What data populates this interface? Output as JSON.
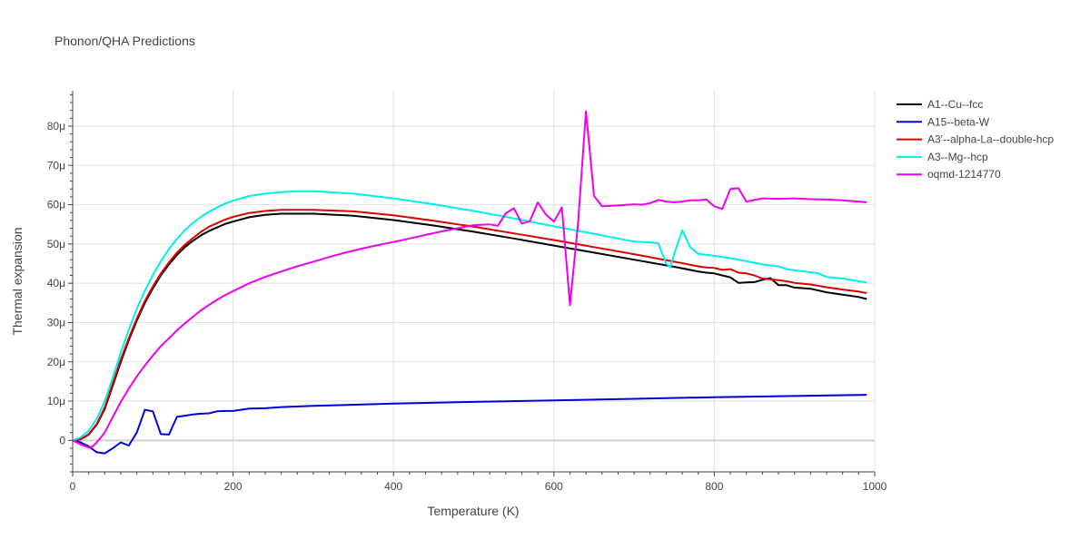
{
  "chart_data": {
    "type": "line",
    "title": "Phonon/QHA Predictions",
    "xlabel": "Temperature (K)",
    "ylabel": "Thermal expansion",
    "xlim": [
      0,
      1000
    ],
    "ylim": [
      -8,
      89
    ],
    "y_unit_suffix": "μ",
    "x_ticks": [
      0,
      200,
      400,
      600,
      800,
      1000
    ],
    "y_ticks": [
      0,
      10,
      20,
      30,
      40,
      50,
      60,
      70,
      80
    ],
    "grid": true,
    "legend_position": "right",
    "series": [
      {
        "name": "A1--Cu--fcc",
        "color": "#000000",
        "x": [
          0,
          10,
          20,
          30,
          40,
          50,
          60,
          70,
          80,
          90,
          100,
          110,
          120,
          130,
          140,
          150,
          160,
          170,
          180,
          190,
          200,
          220,
          240,
          260,
          280,
          300,
          350,
          400,
          450,
          500,
          550,
          600,
          650,
          700,
          750,
          780,
          790,
          800,
          810,
          820,
          830,
          840,
          850,
          860,
          870,
          880,
          890,
          900,
          920,
          940,
          960,
          980,
          990
        ],
        "y": [
          0,
          0.3,
          1.5,
          4,
          8,
          14,
          20,
          25.5,
          30.5,
          35,
          38.7,
          42,
          44.8,
          47.2,
          49.2,
          50.8,
          52.2,
          53.3,
          54.2,
          55.1,
          55.7,
          56.8,
          57.4,
          57.7,
          57.7,
          57.7,
          57.2,
          56.1,
          54.7,
          53.1,
          51.4,
          49.6,
          47.8,
          46,
          44.2,
          43,
          42.7,
          42.5,
          42,
          41.5,
          40.1,
          40.2,
          40.3,
          40.9,
          41.3,
          39.5,
          39.5,
          38.9,
          38.6,
          37.7,
          37.1,
          36.5,
          36
        ]
      },
      {
        "name": "A15--beta-W",
        "color": "#0000dd",
        "x": [
          0,
          10,
          20,
          30,
          40,
          50,
          60,
          70,
          80,
          90,
          100,
          110,
          120,
          130,
          140,
          150,
          160,
          170,
          180,
          190,
          200,
          220,
          240,
          260,
          300,
          400,
          500,
          600,
          700,
          800,
          900,
          990
        ],
        "y": [
          0,
          -0.5,
          -1.5,
          -3,
          -3.3,
          -2,
          -0.5,
          -1.3,
          2,
          7.8,
          7.4,
          1.6,
          1.5,
          6,
          6.3,
          6.6,
          6.8,
          6.9,
          7.4,
          7.5,
          7.5,
          8.1,
          8.2,
          8.5,
          8.8,
          9.4,
          9.8,
          10.2,
          10.6,
          11,
          11.3,
          11.6
        ]
      },
      {
        "name": "A3'--alpha-La--double-hcp",
        "color": "#dd0000",
        "x": [
          0,
          10,
          20,
          30,
          40,
          50,
          60,
          70,
          80,
          90,
          100,
          110,
          120,
          130,
          140,
          150,
          160,
          170,
          180,
          190,
          200,
          220,
          240,
          260,
          280,
          300,
          350,
          400,
          450,
          500,
          550,
          600,
          650,
          700,
          750,
          780,
          790,
          800,
          810,
          820,
          830,
          840,
          850,
          860,
          870,
          880,
          890,
          900,
          920,
          940,
          960,
          980,
          990
        ],
        "y": [
          0,
          0.3,
          1.6,
          4.2,
          8.4,
          14.5,
          20.6,
          26,
          31,
          35.5,
          39.2,
          42.5,
          45.3,
          47.8,
          49.8,
          51.5,
          53.1,
          54.4,
          55.3,
          56.2,
          56.9,
          57.9,
          58.4,
          58.7,
          58.7,
          58.7,
          58.3,
          57.3,
          55.9,
          54.4,
          52.7,
          51,
          49.2,
          47.4,
          45.5,
          44.3,
          44,
          43.9,
          43.4,
          43.6,
          42.7,
          42.5,
          42,
          41.2,
          41,
          40.8,
          40.5,
          40.1,
          39.7,
          39,
          38.4,
          37.9,
          37.5
        ]
      },
      {
        "name": "A3--Mg--hcp",
        "color": "#00eeee",
        "x": [
          0,
          10,
          20,
          30,
          40,
          50,
          60,
          70,
          80,
          90,
          100,
          110,
          120,
          130,
          140,
          150,
          160,
          170,
          180,
          190,
          200,
          220,
          240,
          260,
          280,
          300,
          350,
          400,
          450,
          500,
          550,
          600,
          650,
          700,
          720,
          730,
          740,
          745,
          750,
          760,
          770,
          780,
          800,
          820,
          840,
          860,
          880,
          890,
          900,
          920,
          930,
          940,
          960,
          980,
          990
        ],
        "y": [
          0,
          0.8,
          2.5,
          5.5,
          10,
          16,
          22.4,
          28.2,
          33.5,
          38.1,
          42.1,
          45.6,
          48.7,
          51.3,
          53.5,
          55.4,
          56.9,
          58.2,
          59.3,
          60.3,
          61,
          62.2,
          62.8,
          63.2,
          63.4,
          63.4,
          62.8,
          61.6,
          60.1,
          58.4,
          56.5,
          54.5,
          52.6,
          50.6,
          50.4,
          50.2,
          45,
          44.1,
          47.5,
          53.5,
          49.2,
          47.5,
          47,
          46.4,
          45.6,
          44.8,
          44.3,
          43.6,
          43.3,
          42.8,
          42.5,
          41.6,
          41.2,
          40.5,
          40.2
        ]
      },
      {
        "name": "oqmd-1214770",
        "color": "#ee00ee",
        "x": [
          0,
          10,
          20,
          25,
          30,
          40,
          50,
          60,
          70,
          80,
          90,
          100,
          110,
          120,
          130,
          140,
          150,
          160,
          170,
          180,
          190,
          200,
          220,
          240,
          260,
          280,
          300,
          320,
          340,
          360,
          380,
          400,
          420,
          440,
          460,
          480,
          500,
          520,
          530,
          540,
          550,
          560,
          570,
          580,
          590,
          600,
          610,
          620,
          630,
          640,
          650,
          660,
          680,
          700,
          710,
          720,
          730,
          740,
          750,
          760,
          770,
          780,
          790,
          800,
          810,
          820,
          830,
          840,
          860,
          880,
          900,
          920,
          940,
          960,
          980,
          990
        ],
        "y": [
          0,
          -1,
          -1.8,
          -1.5,
          -0.5,
          2,
          6,
          9.8,
          13.2,
          16.3,
          19.1,
          21.6,
          24,
          26,
          28,
          29.8,
          31.5,
          33.1,
          34.5,
          35.8,
          37,
          38,
          40,
          41.6,
          43,
          44.3,
          45.5,
          46.7,
          47.8,
          48.8,
          49.7,
          50.5,
          51.4,
          52.3,
          53.2,
          54,
          54.8,
          55,
          54.6,
          57.8,
          59.1,
          55.2,
          55.8,
          60.6,
          57.5,
          55.7,
          59.3,
          34.4,
          55,
          83.8,
          62.2,
          59.6,
          59.8,
          60.1,
          60,
          60.4,
          61.2,
          60.8,
          60.6,
          60.8,
          61.1,
          61.1,
          61.3,
          59.6,
          58.9,
          64,
          64.2,
          60.8,
          61.6,
          61.5,
          61.6,
          61.4,
          61.3,
          61.1,
          60.8,
          60.6
        ]
      }
    ]
  }
}
